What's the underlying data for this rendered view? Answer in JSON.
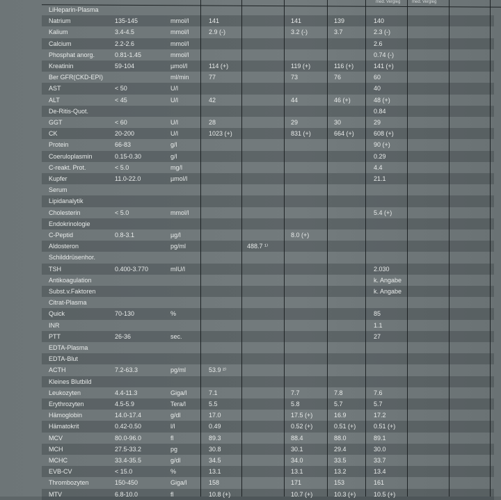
{
  "header": {
    "col_labels": [
      "med. Vergleg",
      "med. Vergleg"
    ]
  },
  "rows": [
    [
      "LiHeparin-Plasma",
      "",
      "",
      "",
      "",
      "",
      "",
      "",
      "",
      ""
    ],
    [
      "Natrium",
      "135-145",
      "mmol/l",
      "141",
      "",
      "141",
      "139",
      "140",
      "",
      ""
    ],
    [
      "Kalium",
      "3.4-4.5",
      "mmol/l",
      "2.9 (-)",
      "",
      "3.2 (-)",
      "3.7",
      "2.3 (-)",
      "",
      ""
    ],
    [
      "Calcium",
      "2.2-2.6",
      "mmol/l",
      "",
      "",
      "",
      "",
      "2.6",
      "",
      ""
    ],
    [
      "Phosphat anorg.",
      "0.81-1.45",
      "mmol/l",
      "",
      "",
      "",
      "",
      "0.74 (-)",
      "",
      ""
    ],
    [
      "Kreatinin",
      "59-104",
      "µmol/l",
      "114 (+)",
      "",
      "119 (+)",
      "116 (+)",
      "141 (+)",
      "",
      ""
    ],
    [
      "Ber GFR(CKD-EPI)",
      "",
      "ml/min",
      "77",
      "",
      "73",
      "76",
      "60",
      "",
      ""
    ],
    [
      "AST",
      "< 50",
      "U/l",
      "",
      "",
      "",
      "",
      "40",
      "",
      ""
    ],
    [
      "ALT",
      "< 45",
      "U/l",
      "42",
      "",
      "44",
      "46 (+)",
      "48 (+)",
      "",
      ""
    ],
    [
      "De-Ritis-Quot.",
      "",
      "",
      "",
      "",
      "",
      "",
      "0.84",
      "",
      ""
    ],
    [
      "GGT",
      "< 60",
      "U/l",
      "28",
      "",
      "29",
      "30",
      "29",
      "",
      ""
    ],
    [
      "CK",
      "20-200",
      "U/l",
      "1023 (+)",
      "",
      "831 (+)",
      "664 (+)",
      "608 (+)",
      "",
      ""
    ],
    [
      "Protein",
      "66-83",
      "g/l",
      "",
      "",
      "",
      "",
      "90 (+)",
      "",
      ""
    ],
    [
      "Coeruloplasmin",
      "0.15-0.30",
      "g/l",
      "",
      "",
      "",
      "",
      "0.29",
      "",
      ""
    ],
    [
      "C-reakt. Prot.",
      "< 5.0",
      "mg/l",
      "",
      "",
      "",
      "",
      "4.4",
      "",
      ""
    ],
    [
      "Kupfer",
      "11.0-22.0",
      "µmol/l",
      "",
      "",
      "",
      "",
      "21.1",
      "",
      ""
    ],
    [
      "Serum",
      "",
      "",
      "",
      "",
      "",
      "",
      "",
      "",
      ""
    ],
    [
      "Lipidanalytik",
      "",
      "",
      "",
      "",
      "",
      "",
      "",
      "",
      ""
    ],
    [
      "Cholesterin",
      "< 5.0",
      "mmol/l",
      "",
      "",
      "",
      "",
      "5.4 (+)",
      "",
      ""
    ],
    [
      "Endokrinologie",
      "",
      "",
      "",
      "",
      "",
      "",
      "",
      "",
      ""
    ],
    [
      "C-Peptid",
      "0.8-3.1",
      "µg/l",
      "",
      "",
      "8.0 (+)",
      "",
      "",
      "",
      ""
    ],
    [
      "Aldosteron",
      "",
      "pg/ml",
      "",
      "488.7  ¹⁾",
      "",
      "",
      "",
      "",
      ""
    ],
    [
      "Schilddrüsenhor.",
      "",
      "",
      "",
      "",
      "",
      "",
      "",
      "",
      ""
    ],
    [
      "TSH",
      "0.400-3.770",
      "mIU/l",
      "",
      "",
      "",
      "",
      "2.030",
      "",
      ""
    ],
    [
      "Antikoagulation",
      "",
      "",
      "",
      "",
      "",
      "",
      "k. Angabe",
      "",
      ""
    ],
    [
      "Subst.v.Faktoren",
      "",
      "",
      "",
      "",
      "",
      "",
      "k. Angabe",
      "",
      ""
    ],
    [
      "Citrat-Plasma",
      "",
      "",
      "",
      "",
      "",
      "",
      "",
      "",
      ""
    ],
    [
      "Quick",
      "70-130",
      "%",
      "",
      "",
      "",
      "",
      "85",
      "",
      ""
    ],
    [
      "INR",
      "",
      "",
      "",
      "",
      "",
      "",
      "1.1",
      "",
      ""
    ],
    [
      "PTT",
      "26-36",
      "sec.",
      "",
      "",
      "",
      "",
      "27",
      "",
      ""
    ],
    [
      "EDTA-Plasma",
      "",
      "",
      "",
      "",
      "",
      "",
      "",
      "",
      ""
    ],
    [
      "EDTA-Blut",
      "",
      "",
      "",
      "",
      "",
      "",
      "",
      "",
      ""
    ],
    [
      "ACTH",
      "7.2-63.3",
      "pg/ml",
      "53.9  ²⁾",
      "",
      "",
      "",
      "",
      "",
      ""
    ],
    [
      "Kleines Blutbild",
      "",
      "",
      "",
      "",
      "",
      "",
      "",
      "",
      ""
    ],
    [
      "Leukozyten",
      "4.4-11.3",
      "Giga/l",
      "7.1",
      "",
      "7.7",
      "7.8",
      "7.6",
      "",
      ""
    ],
    [
      "Erythrozyten",
      "4.5-5.9",
      "Tera/l",
      "5.5",
      "",
      "5.8",
      "5.7",
      "5.7",
      "",
      ""
    ],
    [
      "Hämoglobin",
      "14.0-17.4",
      "g/dl",
      "17.0",
      "",
      "17.5 (+)",
      "16.9",
      "17.2",
      "",
      ""
    ],
    [
      "Hämatokrit",
      "0.42-0.50",
      "l/l",
      "0.49",
      "",
      "0.52 (+)",
      "0.51 (+)",
      "0.51 (+)",
      "",
      ""
    ],
    [
      "MCV",
      "80.0-96.0",
      "fl",
      "89.3",
      "",
      "88.4",
      "88.0",
      "89.1",
      "",
      ""
    ],
    [
      "MCH",
      "27.5-33.2",
      "pg",
      "30.8",
      "",
      "30.1",
      "29.4",
      "30.0",
      "",
      ""
    ],
    [
      "MCHC",
      "33.4-35.5",
      "g/dl",
      "34.5",
      "",
      "34.0",
      "33.5",
      "33.7",
      "",
      ""
    ],
    [
      "EVB-CV",
      "< 15.0",
      "%",
      "13.1",
      "",
      "13.1",
      "13.2",
      "13.4",
      "",
      ""
    ],
    [
      "Thrombozyten",
      "150-450",
      "Giga/l",
      "158",
      "",
      "171",
      "153",
      "161",
      "",
      ""
    ],
    [
      "MTV",
      "6.8-10.0",
      "fl",
      "10.8 (+)",
      "",
      "10.7 (+)",
      "10.3 (+)",
      "10.5 (+)",
      "",
      ""
    ]
  ]
}
